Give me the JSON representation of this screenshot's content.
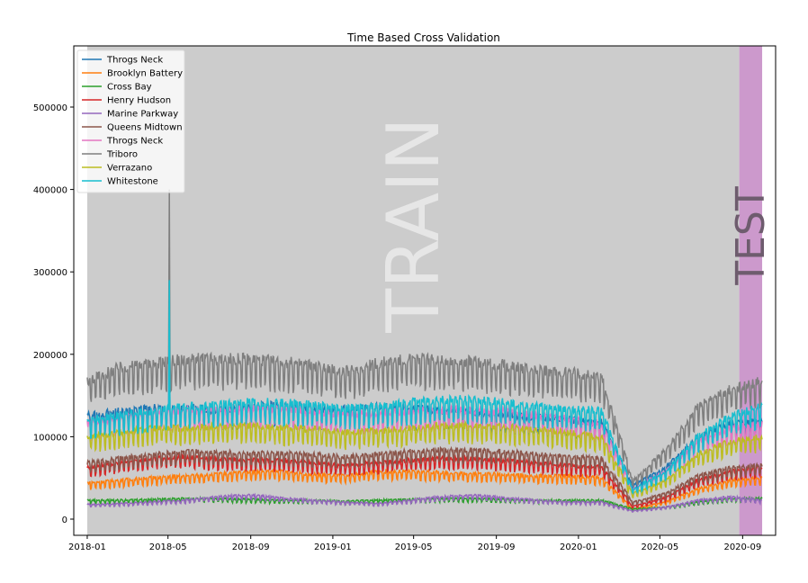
{
  "chart_data": {
    "type": "line",
    "title": "Time Based Cross Validation",
    "xlabel": "",
    "ylabel": "",
    "x_ticks": [
      "2018-01",
      "2018-05",
      "2018-09",
      "2019-01",
      "2019-05",
      "2019-09",
      "2020-01",
      "2020-05",
      "2020-09"
    ],
    "y_ticks": [
      "0",
      "100000",
      "200000",
      "300000",
      "400000",
      "500000"
    ],
    "ylim": [
      -20000,
      570000
    ],
    "xlim": [
      "2018-01-01",
      "2020-10-01"
    ],
    "grid": false,
    "legend_position": "top-left",
    "regions": [
      {
        "label": "TRAIN",
        "start": "2018-01-01",
        "end": "2020-08-27",
        "color": "#cccccc",
        "text_color": "#e6e6e6"
      },
      {
        "label": "TEST",
        "start": "2020-08-27",
        "end": "2020-09-30",
        "color": "#cc99cc",
        "text_color": "#6e5c6e"
      }
    ],
    "series": [
      {
        "name": "Throgs Neck",
        "color": "#1f77b4",
        "base": [
          120000,
          125000,
          128000,
          130000,
          126000,
          130000,
          132000,
          128000,
          127000,
          130000,
          128000,
          126000,
          124000,
          120000,
          118000,
          115000,
          112000,
          40000,
          60000,
          95000,
          110000,
          115000
        ]
      },
      {
        "name": "Brooklyn Battery",
        "color": "#ff7f0e",
        "base": [
          42000,
          45000,
          48000,
          50000,
          52000,
          55000,
          55000,
          52000,
          50000,
          55000,
          55000,
          54000,
          53000,
          52000,
          50000,
          50000,
          48000,
          12000,
          20000,
          35000,
          45000,
          48000
        ]
      },
      {
        "name": "Cross Bay",
        "color": "#2ca02c",
        "base": [
          22000,
          22000,
          23000,
          24000,
          24000,
          23000,
          22000,
          22000,
          21000,
          22000,
          23000,
          24000,
          24000,
          23000,
          22000,
          22000,
          22000,
          12000,
          14000,
          20000,
          24000,
          24000
        ]
      },
      {
        "name": "Henry Hudson",
        "color": "#d62728",
        "base": [
          60000,
          65000,
          70000,
          72000,
          70000,
          68000,
          68000,
          65000,
          62000,
          65000,
          68000,
          70000,
          70000,
          68000,
          65000,
          62000,
          60000,
          15000,
          25000,
          45000,
          55000,
          60000
        ]
      },
      {
        "name": "Marine Parkway",
        "color": "#9467bd",
        "base": [
          17000,
          18000,
          20000,
          22000,
          26000,
          28000,
          25000,
          22000,
          20000,
          18000,
          22000,
          26000,
          28000,
          25000,
          22000,
          20000,
          20000,
          10000,
          14000,
          22000,
          26000,
          22000
        ]
      },
      {
        "name": "Queens Midtown",
        "color": "#8c564b",
        "base": [
          65000,
          70000,
          75000,
          78000,
          78000,
          76000,
          76000,
          75000,
          72000,
          75000,
          78000,
          80000,
          80000,
          78000,
          75000,
          72000,
          70000,
          20000,
          30000,
          50000,
          60000,
          62000
        ]
      },
      {
        "name": "Throgs Neck",
        "color": "#e377c2",
        "base": [
          110000,
          118000,
          122000,
          125000,
          125000,
          128000,
          128000,
          125000,
          120000,
          122000,
          125000,
          126000,
          126000,
          124000,
          120000,
          115000,
          110000,
          35000,
          55000,
          90000,
          105000,
          110000
        ]
      },
      {
        "name": "Triboro",
        "color": "#7f7f7f",
        "base": [
          160000,
          175000,
          180000,
          185000,
          185000,
          185000,
          182000,
          178000,
          170000,
          180000,
          185000,
          185000,
          182000,
          178000,
          172000,
          170000,
          165000,
          45000,
          80000,
          130000,
          150000,
          160000
        ]
      },
      {
        "name": "Verrazano",
        "color": "#bcbd22",
        "base": [
          95000,
          100000,
          105000,
          105000,
          108000,
          108000,
          106000,
          104000,
          100000,
          102000,
          105000,
          108000,
          108000,
          106000,
          104000,
          100000,
          95000,
          30000,
          45000,
          75000,
          90000,
          95000
        ]
      },
      {
        "name": "Whitestone",
        "color": "#17becf",
        "base": [
          115000,
          120000,
          125000,
          130000,
          132000,
          135000,
          135000,
          132000,
          128000,
          130000,
          135000,
          138000,
          138000,
          135000,
          130000,
          128000,
          125000,
          35000,
          55000,
          95000,
          120000,
          130000
        ]
      }
    ],
    "spike_date": "2018-05-03",
    "spike_values": {
      "Triboro": 400000,
      "Whitestone": 290000,
      "Throgs Neck": 230000
    }
  }
}
